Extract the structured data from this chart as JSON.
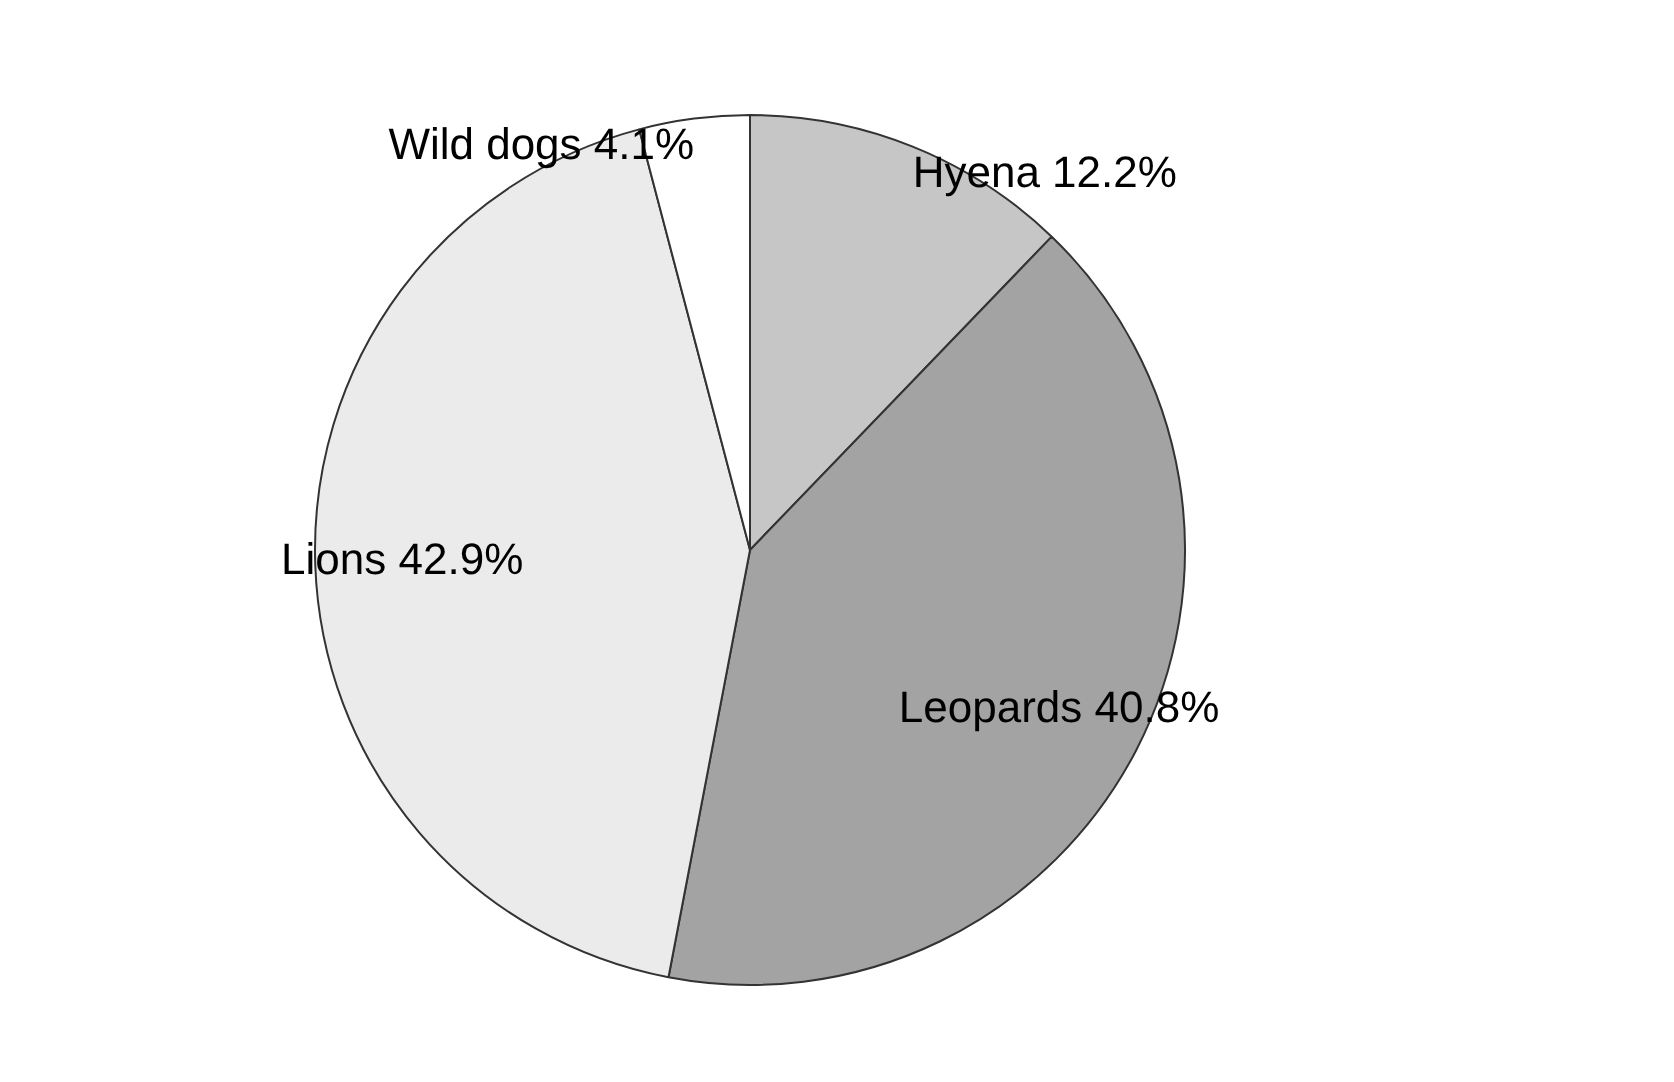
{
  "chart_data": {
    "type": "pie",
    "categories": [
      "Hyena",
      "Leopards",
      "Lions",
      "Wild dogs"
    ],
    "values": [
      12.2,
      40.8,
      42.9,
      4.1
    ],
    "value_labels": [
      "12.2%",
      "40.8%",
      "42.9%",
      "4.1%"
    ],
    "colors": [
      "#c6c6c6",
      "#a3a3a3",
      "#ebebeb",
      "#ffffff"
    ],
    "legend": false
  }
}
